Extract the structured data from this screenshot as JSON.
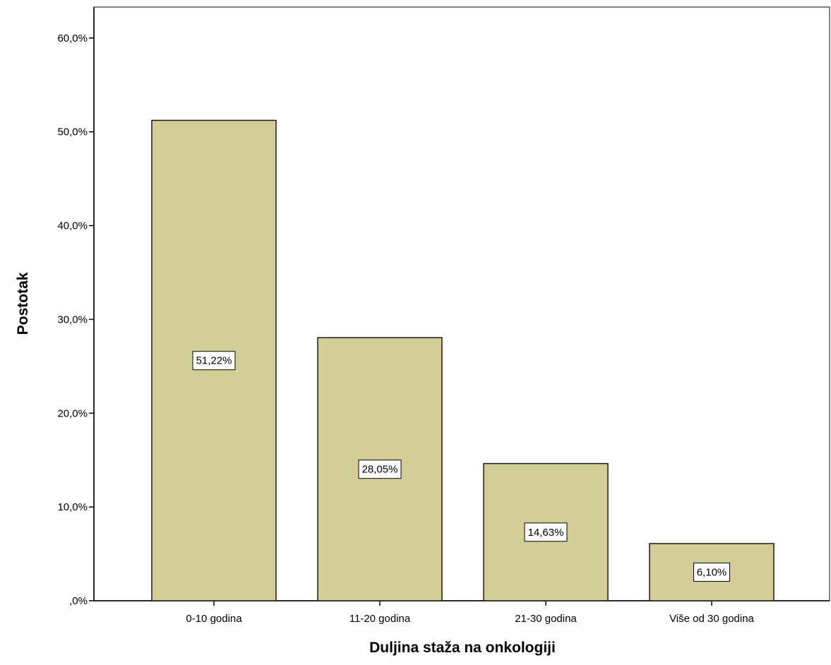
{
  "chart_data": {
    "type": "bar",
    "title": "",
    "xlabel": "Duljina staža na onkologiji",
    "ylabel": "Postotak",
    "categories": [
      "0-10 godina",
      "11-20 godina",
      "21-30  godina",
      "Više od 30 godina"
    ],
    "values": [
      51.22,
      28.05,
      14.63,
      6.1
    ],
    "data_labels": [
      "51,22%",
      "28,05%",
      "14,63%",
      "6,10%"
    ],
    "ylim": [
      0,
      63.3
    ],
    "yticks": [
      0,
      10,
      20,
      30,
      40,
      50,
      60
    ],
    "ytick_labels": [
      ",0%",
      "10,0%",
      "20,0%",
      "30,0%",
      "40,0%",
      "50,0%",
      "60,0%"
    ],
    "grid": false,
    "legend": "none",
    "colors": {
      "bar_fill": "#D3CE97",
      "bar_stroke": "#1a1a1a",
      "axis": "#000000",
      "frame": "#5a5a5a",
      "label_box_fill": "#ffffff"
    }
  }
}
